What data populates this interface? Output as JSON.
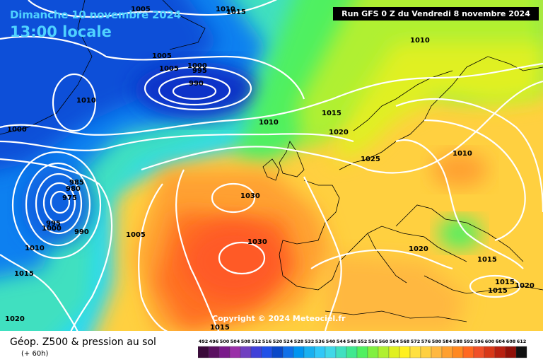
{
  "header": {
    "date": "Dimanche 10 novembre 2024",
    "time": "13:00 locale",
    "run": "Run GFS 0 Z du Vendredi 8 novembre 2024"
  },
  "copyright": "Copyright © 2024 Meteociel.fr",
  "footer": {
    "title": "Géop. Z500 & pression au sol",
    "subtitle": "(+ 60h)"
  },
  "legend": {
    "values": [
      "492",
      "496",
      "500",
      "504",
      "508",
      "512",
      "516",
      "520",
      "524",
      "528",
      "532",
      "536",
      "540",
      "544",
      "548",
      "552",
      "556",
      "560",
      "564",
      "568",
      "572",
      "576",
      "580",
      "584",
      "588",
      "592",
      "596",
      "600",
      "604",
      "608",
      "612"
    ],
    "colors": [
      "#3a0a3a",
      "#5a1060",
      "#7a1a8a",
      "#9a30a8",
      "#7040c0",
      "#4040d8",
      "#2050e8",
      "#0a48c8",
      "#1070e8",
      "#0094f0",
      "#18b0f0",
      "#30c8f8",
      "#40d8e8",
      "#40e0c0",
      "#40e890",
      "#50f060",
      "#80f040",
      "#b0f030",
      "#e0f020",
      "#fff020",
      "#ffe040",
      "#ffd040",
      "#ffb840",
      "#ffa030",
      "#ff8820",
      "#ff6820",
      "#f05028",
      "#d83818",
      "#b82010",
      "#901008",
      "#101010"
    ]
  },
  "isobars": {
    "labels": [
      "1005",
      "1010",
      "1015",
      "1005",
      "1005",
      "1000",
      "995",
      "990",
      "1010",
      "1000",
      "1015",
      "1010",
      "1020",
      "1025",
      "985",
      "980",
      "975",
      "995",
      "1000",
      "990",
      "1005",
      "1030",
      "1030",
      "1010",
      "1015",
      "1020",
      "1020",
      "1015",
      "1015",
      "1015",
      "1020",
      "1015",
      "1010",
      "1010"
    ]
  }
}
